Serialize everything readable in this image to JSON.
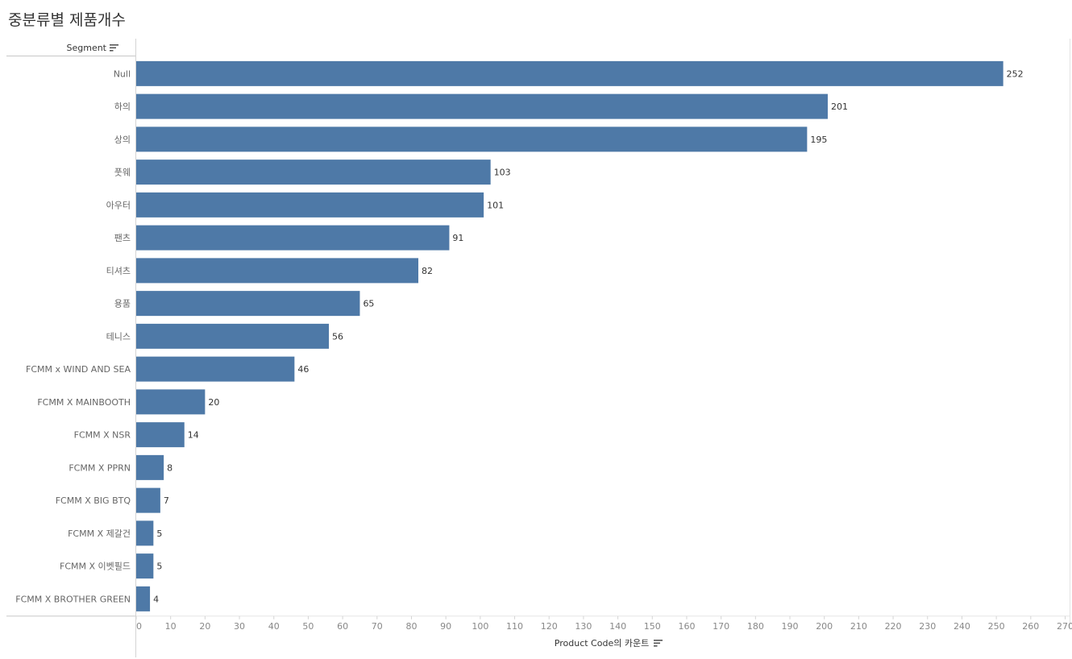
{
  "title": "중분류별 제품개수",
  "segment_header": "Segment",
  "icons": {
    "sort": "sort-descending-icon"
  },
  "colors": {
    "bar": "#4e79a7",
    "axis": "#d4d4d4",
    "text": "#333333"
  },
  "chart_data": {
    "type": "bar",
    "orientation": "horizontal",
    "title": "중분류별 제품개수",
    "ylabel": "Segment",
    "xlabel": "Product Code의 카운트",
    "xlim": [
      0,
      270
    ],
    "x_ticks": [
      0,
      10,
      20,
      30,
      40,
      50,
      60,
      70,
      80,
      90,
      100,
      110,
      120,
      130,
      140,
      150,
      160,
      170,
      180,
      190,
      200,
      210,
      220,
      230,
      240,
      250,
      260,
      270
    ],
    "grid": false,
    "categories": [
      "Null",
      "하의",
      "상의",
      "풋웨",
      "아우터",
      "팬츠",
      "티셔츠",
      "용품",
      "테니스",
      "FCMM x WIND AND SEA",
      "FCMM X MAINBOOTH",
      "FCMM X NSR",
      "FCMM X PPRN",
      "FCMM X BIG BTQ",
      "FCMM X 제갈건",
      "FCMM X 이벳필드",
      "FCMM X BROTHER GREEN"
    ],
    "values": [
      252,
      201,
      195,
      103,
      101,
      91,
      82,
      65,
      56,
      46,
      20,
      14,
      8,
      7,
      5,
      5,
      4
    ]
  }
}
